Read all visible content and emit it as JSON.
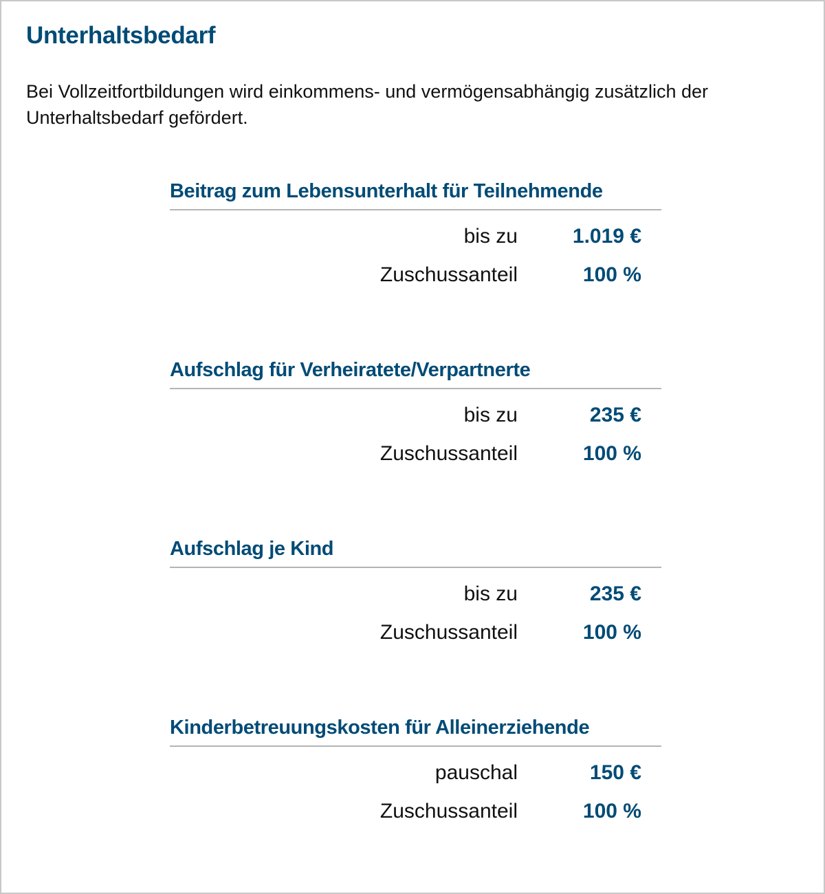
{
  "title": "Unterhaltsbedarf",
  "intro": "Bei Vollzeitfortbildungen wird einkommens- und vermögensabhängig zusätzlich der Unterhaltsbedarf gefördert.",
  "accent_color": "#004b76",
  "sections": [
    {
      "heading": "Beitrag zum Lebensunterhalt für Teilnehmende",
      "rows": [
        {
          "label": "bis zu",
          "value": "1.019 €"
        },
        {
          "label": "Zuschussanteil",
          "value": "100 %"
        }
      ]
    },
    {
      "heading": "Aufschlag für Verheiratete/Verpartnerte",
      "rows": [
        {
          "label": "bis zu",
          "value": "235 €"
        },
        {
          "label": "Zuschussanteil",
          "value": "100 %"
        }
      ]
    },
    {
      "heading": "Aufschlag je Kind",
      "rows": [
        {
          "label": "bis zu",
          "value": "235 €"
        },
        {
          "label": "Zuschussanteil",
          "value": "100 %"
        }
      ]
    },
    {
      "heading": "Kinderbetreuungskosten für Alleinerziehende",
      "rows": [
        {
          "label": "pauschal",
          "value": "150 €"
        },
        {
          "label": "Zuschussanteil",
          "value": "100 %"
        }
      ]
    }
  ]
}
